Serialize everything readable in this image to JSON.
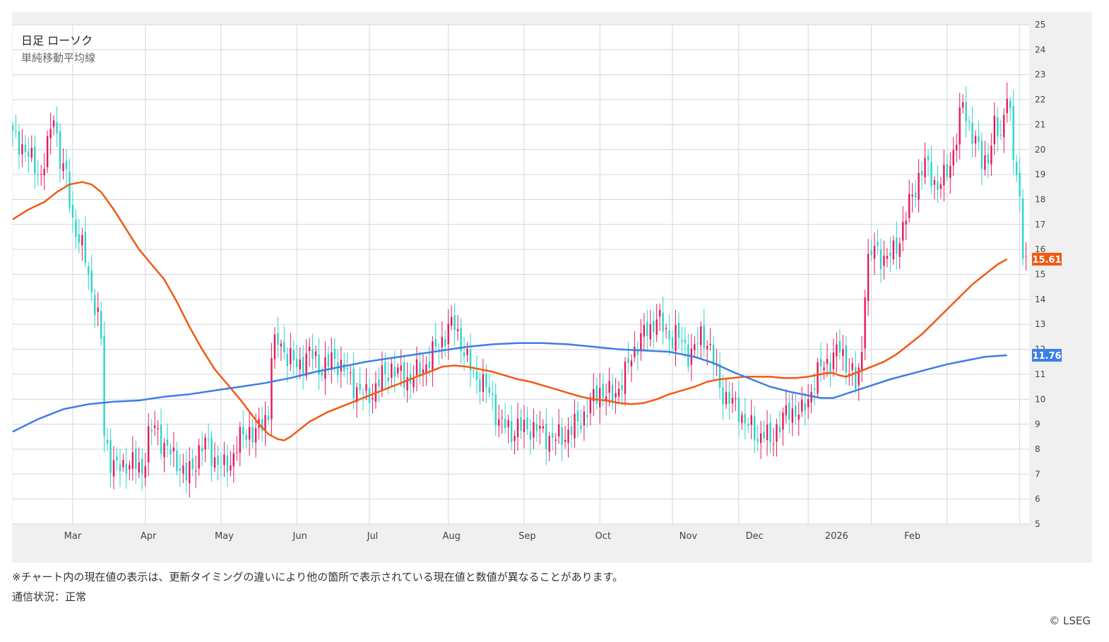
{
  "legend": {
    "title": "日足 ローソク",
    "subtitle": "単純移動平均線"
  },
  "footer": {
    "note": "※チャート内の現在値の表示は、更新タイミングの違いにより他の箇所で表示されている現在値と数値が異なることがあります。",
    "status": "通信状況：正常",
    "credit": "© LSEG"
  },
  "colors": {
    "up": "#e8185a",
    "down": "#2bd4cc",
    "ma_short": "#f05a14",
    "ma_long": "#3c7ee6",
    "grid": "#d2d6e0",
    "panel": "#ffffff",
    "background": "#f0f0f0"
  },
  "chart_data": {
    "type": "candlestick",
    "x_tick_labels": [
      "Mar",
      "Apr",
      "May",
      "Jun",
      "Jul",
      "Aug",
      "Sep",
      "Oct",
      "Nov",
      "Dec",
      "2026",
      "Feb"
    ],
    "y_tick_labels": [
      "5",
      "6",
      "7",
      "8",
      "9",
      "10",
      "11",
      "12",
      "13",
      "14",
      "15",
      "16",
      "17",
      "18",
      "19",
      "20",
      "21",
      "22",
      "23",
      "24",
      "25"
    ],
    "ylim": [
      5,
      25
    ],
    "grid": true,
    "last_values": [
      {
        "label": "15.61",
        "value": 15.61,
        "color": "#f05a14"
      },
      {
        "label": "11.76",
        "value": 11.76,
        "color": "#3c7ee6"
      }
    ],
    "price_path": [
      [
        0,
        20.5
      ],
      [
        3,
        20.2
      ],
      [
        6,
        19.5
      ],
      [
        9,
        19.0
      ],
      [
        11,
        20.0
      ],
      [
        13,
        21.5
      ],
      [
        15,
        19.6
      ],
      [
        17,
        18.8
      ],
      [
        19,
        17.2
      ],
      [
        21,
        16.4
      ],
      [
        23,
        15.6
      ],
      [
        25,
        14.4
      ],
      [
        27,
        13.2
      ],
      [
        28,
        12.3
      ],
      [
        29,
        8.6
      ],
      [
        31,
        7.6
      ],
      [
        33,
        7.2
      ],
      [
        35,
        7.3
      ],
      [
        37,
        7.6
      ],
      [
        39,
        7.3
      ],
      [
        41,
        7.1
      ],
      [
        43,
        8.6
      ],
      [
        45,
        8.8
      ],
      [
        47,
        8.4
      ],
      [
        49,
        8.0
      ],
      [
        51,
        7.6
      ],
      [
        53,
        7.4
      ],
      [
        55,
        6.9
      ],
      [
        57,
        7.2
      ],
      [
        59,
        8.0
      ],
      [
        61,
        8.2
      ],
      [
        63,
        7.8
      ],
      [
        65,
        7.5
      ],
      [
        67,
        7.2
      ],
      [
        69,
        7.5
      ],
      [
        71,
        8.2
      ],
      [
        73,
        8.5
      ],
      [
        75,
        8.8
      ],
      [
        77,
        8.6
      ],
      [
        79,
        9.0
      ],
      [
        81,
        9.5
      ],
      [
        82,
        11.8
      ],
      [
        84,
        12.3
      ],
      [
        86,
        12.0
      ],
      [
        88,
        11.6
      ],
      [
        90,
        11.3
      ],
      [
        92,
        11.6
      ],
      [
        94,
        11.8
      ],
      [
        96,
        11.6
      ],
      [
        98,
        11.2
      ],
      [
        100,
        11.4
      ],
      [
        102,
        11.7
      ],
      [
        104,
        11.3
      ],
      [
        106,
        11.0
      ],
      [
        108,
        10.6
      ],
      [
        110,
        10.3
      ],
      [
        112,
        10.1
      ],
      [
        114,
        10.3
      ],
      [
        116,
        10.7
      ],
      [
        118,
        11.0
      ],
      [
        120,
        11.3
      ],
      [
        122,
        11.0
      ],
      [
        124,
        10.9
      ],
      [
        126,
        10.8
      ],
      [
        128,
        11.0
      ],
      [
        130,
        11.3
      ],
      [
        132,
        11.6
      ],
      [
        134,
        12.0
      ],
      [
        136,
        12.4
      ],
      [
        138,
        12.8
      ],
      [
        140,
        13.0
      ],
      [
        142,
        12.3
      ],
      [
        144,
        11.5
      ],
      [
        146,
        11.0
      ],
      [
        148,
        10.8
      ],
      [
        150,
        10.4
      ],
      [
        152,
        10.0
      ],
      [
        154,
        9.1
      ],
      [
        156,
        8.9
      ],
      [
        158,
        8.7
      ],
      [
        160,
        8.9
      ],
      [
        162,
        8.8
      ],
      [
        164,
        8.9
      ],
      [
        166,
        8.8
      ],
      [
        168,
        8.6
      ],
      [
        170,
        8.5
      ],
      [
        172,
        8.4
      ],
      [
        174,
        8.5
      ],
      [
        176,
        8.7
      ],
      [
        178,
        8.9
      ],
      [
        180,
        9.2
      ],
      [
        182,
        9.6
      ],
      [
        184,
        10.0
      ],
      [
        186,
        10.4
      ],
      [
        188,
        10.2
      ],
      [
        190,
        10.1
      ],
      [
        192,
        10.5
      ],
      [
        194,
        11.0
      ],
      [
        196,
        11.7
      ],
      [
        198,
        12.3
      ],
      [
        200,
        12.6
      ],
      [
        202,
        12.8
      ],
      [
        204,
        13.4
      ],
      [
        206,
        12.8
      ],
      [
        208,
        12.5
      ],
      [
        210,
        12.6
      ],
      [
        212,
        12.2
      ],
      [
        214,
        11.9
      ],
      [
        216,
        12.0
      ],
      [
        218,
        12.5
      ],
      [
        220,
        12.4
      ],
      [
        222,
        11.5
      ],
      [
        224,
        10.5
      ],
      [
        226,
        10.1
      ],
      [
        228,
        9.8
      ],
      [
        230,
        9.6
      ],
      [
        232,
        9.1
      ],
      [
        234,
        8.8
      ],
      [
        236,
        8.5
      ],
      [
        238,
        8.7
      ],
      [
        240,
        8.2
      ],
      [
        242,
        8.9
      ],
      [
        244,
        9.2
      ],
      [
        246,
        9.5
      ],
      [
        248,
        9.6
      ],
      [
        250,
        9.4
      ],
      [
        252,
        10.0
      ],
      [
        254,
        10.8
      ],
      [
        256,
        11.2
      ],
      [
        258,
        11.5
      ],
      [
        260,
        11.7
      ],
      [
        262,
        12.0
      ],
      [
        264,
        11.5
      ],
      [
        266,
        11.0
      ],
      [
        267,
        10.5
      ],
      [
        268,
        11.0
      ],
      [
        269,
        12.0
      ],
      [
        270,
        14.6
      ],
      [
        271,
        15.5
      ],
      [
        273,
        16.0
      ],
      [
        275,
        15.8
      ],
      [
        277,
        15.6
      ],
      [
        279,
        15.9
      ],
      [
        281,
        16.5
      ],
      [
        283,
        17.3
      ],
      [
        285,
        18.2
      ],
      [
        287,
        18.9
      ],
      [
        289,
        19.4
      ],
      [
        291,
        19.0
      ],
      [
        293,
        18.5
      ],
      [
        295,
        18.8
      ],
      [
        297,
        19.5
      ],
      [
        299,
        20.5
      ],
      [
        301,
        21.8
      ],
      [
        303,
        21.0
      ],
      [
        305,
        20.3
      ],
      [
        307,
        19.5
      ],
      [
        309,
        19.8
      ],
      [
        311,
        20.8
      ],
      [
        313,
        20.5
      ],
      [
        315,
        22.5
      ],
      [
        316,
        21.2
      ],
      [
        317,
        19.5
      ],
      [
        318,
        19.0
      ],
      [
        319,
        18.0
      ],
      [
        320,
        16.2
      ],
      [
        321,
        15.6
      ]
    ],
    "series": [
      {
        "key": "short_ma",
        "line": [
          [
            0,
            17.2
          ],
          [
            5,
            17.6
          ],
          [
            10,
            17.9
          ],
          [
            14,
            18.3
          ],
          [
            18,
            18.6
          ],
          [
            22,
            18.7
          ],
          [
            25,
            18.6
          ],
          [
            28,
            18.3
          ],
          [
            32,
            17.6
          ],
          [
            36,
            16.8
          ],
          [
            40,
            16.0
          ],
          [
            44,
            15.4
          ],
          [
            48,
            14.8
          ],
          [
            52,
            13.9
          ],
          [
            56,
            12.9
          ],
          [
            60,
            12.0
          ],
          [
            64,
            11.2
          ],
          [
            68,
            10.6
          ],
          [
            72,
            10.0
          ],
          [
            75,
            9.5
          ],
          [
            78,
            9.0
          ],
          [
            81,
            8.6
          ],
          [
            84,
            8.4
          ],
          [
            86,
            8.35
          ],
          [
            88,
            8.5
          ],
          [
            91,
            8.8
          ],
          [
            94,
            9.1
          ],
          [
            97,
            9.3
          ],
          [
            100,
            9.5
          ],
          [
            104,
            9.7
          ],
          [
            108,
            9.9
          ],
          [
            112,
            10.1
          ],
          [
            116,
            10.3
          ],
          [
            120,
            10.5
          ],
          [
            124,
            10.7
          ],
          [
            128,
            10.9
          ],
          [
            132,
            11.1
          ],
          [
            136,
            11.3
          ],
          [
            140,
            11.35
          ],
          [
            144,
            11.3
          ],
          [
            148,
            11.2
          ],
          [
            152,
            11.1
          ],
          [
            156,
            10.95
          ],
          [
            160,
            10.8
          ],
          [
            164,
            10.7
          ],
          [
            168,
            10.55
          ],
          [
            172,
            10.4
          ],
          [
            176,
            10.25
          ],
          [
            180,
            10.1
          ],
          [
            184,
            10.0
          ],
          [
            188,
            9.95
          ],
          [
            192,
            9.85
          ],
          [
            196,
            9.8
          ],
          [
            200,
            9.85
          ],
          [
            204,
            10.0
          ],
          [
            208,
            10.2
          ],
          [
            212,
            10.35
          ],
          [
            216,
            10.5
          ],
          [
            220,
            10.7
          ],
          [
            224,
            10.8
          ],
          [
            228,
            10.85
          ],
          [
            232,
            10.9
          ],
          [
            236,
            10.9
          ],
          [
            240,
            10.9
          ],
          [
            244,
            10.85
          ],
          [
            248,
            10.85
          ],
          [
            252,
            10.9
          ],
          [
            256,
            11.0
          ],
          [
            258,
            11.05
          ],
          [
            260,
            11.05
          ],
          [
            262,
            10.95
          ],
          [
            264,
            10.9
          ],
          [
            268,
            11.1
          ],
          [
            272,
            11.3
          ],
          [
            276,
            11.5
          ],
          [
            280,
            11.8
          ],
          [
            284,
            12.2
          ],
          [
            288,
            12.6
          ],
          [
            292,
            13.1
          ],
          [
            296,
            13.6
          ],
          [
            300,
            14.1
          ],
          [
            304,
            14.6
          ],
          [
            308,
            15.0
          ],
          [
            312,
            15.4
          ],
          [
            315,
            15.61
          ]
        ]
      },
      {
        "key": "long_ma",
        "line": [
          [
            0,
            8.7
          ],
          [
            8,
            9.2
          ],
          [
            16,
            9.6
          ],
          [
            24,
            9.8
          ],
          [
            32,
            9.9
          ],
          [
            40,
            9.95
          ],
          [
            48,
            10.1
          ],
          [
            56,
            10.2
          ],
          [
            64,
            10.35
          ],
          [
            72,
            10.5
          ],
          [
            80,
            10.65
          ],
          [
            88,
            10.85
          ],
          [
            96,
            11.1
          ],
          [
            104,
            11.3
          ],
          [
            112,
            11.5
          ],
          [
            120,
            11.65
          ],
          [
            128,
            11.8
          ],
          [
            136,
            11.95
          ],
          [
            144,
            12.1
          ],
          [
            152,
            12.2
          ],
          [
            160,
            12.25
          ],
          [
            168,
            12.25
          ],
          [
            176,
            12.2
          ],
          [
            184,
            12.1
          ],
          [
            192,
            12.0
          ],
          [
            200,
            11.95
          ],
          [
            208,
            11.9
          ],
          [
            216,
            11.7
          ],
          [
            222,
            11.45
          ],
          [
            228,
            11.1
          ],
          [
            234,
            10.8
          ],
          [
            240,
            10.5
          ],
          [
            246,
            10.3
          ],
          [
            252,
            10.15
          ],
          [
            256,
            10.05
          ],
          [
            260,
            10.05
          ],
          [
            266,
            10.3
          ],
          [
            272,
            10.55
          ],
          [
            278,
            10.8
          ],
          [
            284,
            11.0
          ],
          [
            290,
            11.2
          ],
          [
            296,
            11.4
          ],
          [
            302,
            11.55
          ],
          [
            308,
            11.7
          ],
          [
            315,
            11.76
          ]
        ]
      }
    ]
  }
}
